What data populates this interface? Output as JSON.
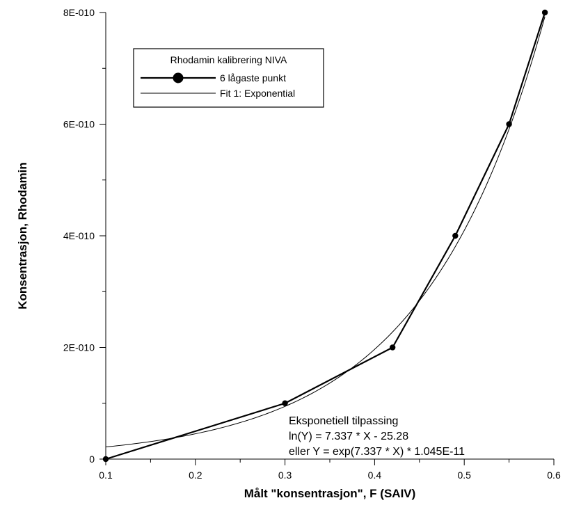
{
  "chart_data": {
    "type": "line",
    "title": "",
    "xlabel": "Målt  \"konsentrasjon\", F (SAIV)",
    "ylabel": "Konsentrasjon, Rhodamin",
    "xlim": [
      0.1,
      0.6
    ],
    "ylim": [
      0,
      8e-10
    ],
    "x_ticks": [
      0.1,
      0.2,
      0.3,
      0.4,
      0.5,
      0.6
    ],
    "x_tick_labels": [
      "0.1",
      "0.2",
      "0.3",
      "0.4",
      "0.5",
      "0.6"
    ],
    "y_ticks": [
      0,
      2e-10,
      4e-10,
      6e-10,
      8e-10
    ],
    "y_tick_labels": [
      "0",
      "2E-010",
      "4E-010",
      "6E-010",
      "8E-010"
    ],
    "y_minor_ticks": [
      1e-10,
      3e-10,
      5e-10,
      7e-10
    ],
    "x_minor_ticks": [
      0.15,
      0.25,
      0.35,
      0.45,
      0.55
    ],
    "grid": false,
    "legend": {
      "title": "Rhodamin kalibrering  NIVA",
      "placement": "top-left"
    },
    "series": [
      {
        "name": "6 lågaste punkt",
        "style": "line-markers",
        "color": "#000000",
        "x": [
          0.1,
          0.3,
          0.42,
          0.49,
          0.55,
          0.59
        ],
        "y": [
          0,
          1e-10,
          2e-10,
          4e-10,
          6e-10,
          8e-10
        ]
      },
      {
        "name": "Fit 1: Exponential",
        "style": "line",
        "color": "#000000",
        "function": "exponential",
        "a": 1.045e-11,
        "b": 7.337,
        "x_range": [
          0.1,
          0.59
        ]
      }
    ],
    "annotation": {
      "lines": [
        "Eksponetiell tilpassing",
        "ln(Y) = 7.337 * X - 25.28",
        "eller Y = exp(7.337 * X) * 1.045E-11"
      ]
    }
  }
}
